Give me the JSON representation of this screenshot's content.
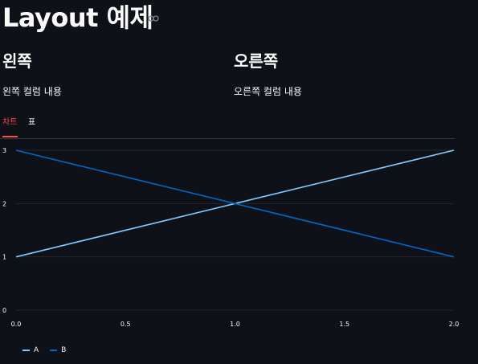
{
  "header": {
    "title": "Layout 예제",
    "anchor_icon": "link-icon"
  },
  "columns": {
    "left": {
      "heading": "왼쪽",
      "text": "왼쪽 컬럼 내용"
    },
    "right": {
      "heading": "오른쪽",
      "text": "오른쪽 컬럼 내용"
    }
  },
  "tabs": [
    {
      "label": "차트",
      "active": true
    },
    {
      "label": "표",
      "active": false
    }
  ],
  "colors": {
    "background": "#0e1117",
    "accent": "#ff4b4b",
    "series_a": "#83c9ff",
    "series_b": "#0068c9",
    "grid": "#262730"
  },
  "chart_data": {
    "type": "line",
    "x": [
      0,
      1,
      2
    ],
    "series": [
      {
        "name": "A",
        "values": [
          1,
          2,
          3
        ]
      },
      {
        "name": "B",
        "values": [
          3,
          2,
          1
        ]
      }
    ],
    "xticks": [
      "0.0",
      "0.5",
      "1.0",
      "1.5",
      "2.0"
    ],
    "yticks": [
      "0",
      "1",
      "2",
      "3"
    ],
    "xlim": [
      0,
      2
    ],
    "ylim": [
      0,
      3
    ],
    "grid": true,
    "legend": "bottom-left"
  }
}
